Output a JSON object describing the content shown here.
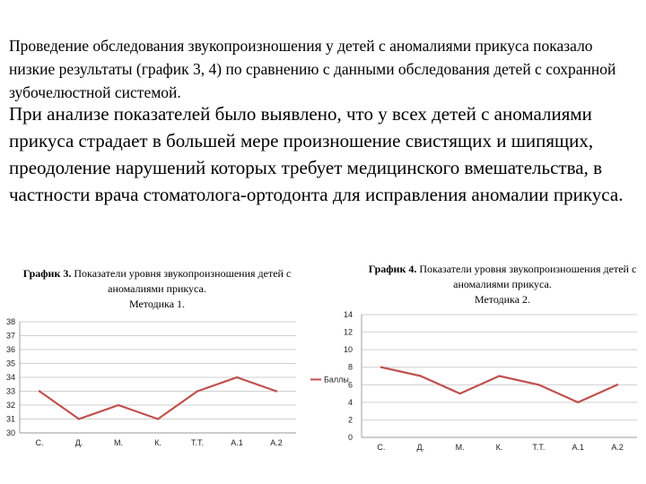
{
  "text": {
    "paragraph1": "Проведение обследования звукопроизношения у детей с аномалиями прикуса показало низкие результаты (график 3, 4) по сравнению с данными обследования детей с сохранной зубочелюстной системой.",
    "paragraph2": "При анализе показателей было выявлено, что у всех детей с аномалиями прикуса страдает в большей мере произношение свистящих и шипящих, преодоление нарушений которых требует медицинского вмешательства, в частности врача стоматолога-ортодонта для исправления аномалии прикуса."
  },
  "colors": {
    "line": "#c0504d",
    "grid": "#bfbfbf",
    "axis": "#888888"
  },
  "chart_data": [
    {
      "type": "line",
      "title_prefix": "График 3.",
      "title": "Показатели уровня звукопроизношения детей с аномалиями прикуса.",
      "subtitle": "Методика 1.",
      "categories": [
        "С.",
        "Д.",
        "М.",
        "К.",
        "Т.Т.",
        "А.1",
        "А.2"
      ],
      "series": [
        {
          "name": "",
          "values": [
            33,
            31,
            32,
            31,
            33,
            34,
            33
          ]
        }
      ],
      "ylim": [
        30,
        38
      ],
      "yticks": [
        30,
        31,
        32,
        33,
        34,
        35,
        36,
        37,
        38
      ],
      "grid": true
    },
    {
      "type": "line",
      "title_prefix": "График 4.",
      "title": "Показатели уровня звукопроизношения детей с аномалиями прикуса.",
      "subtitle": "Методика 2.",
      "categories": [
        "С.",
        "Д.",
        "М.",
        "К.",
        "Т.Т.",
        "А.1",
        "А.2"
      ],
      "series": [
        {
          "name": "Баллы",
          "values": [
            8,
            7,
            5,
            7,
            6,
            4,
            6
          ]
        }
      ],
      "ylim": [
        0,
        14
      ],
      "yticks": [
        0,
        2,
        4,
        6,
        8,
        10,
        12,
        14
      ],
      "grid": true,
      "legend": "left"
    }
  ]
}
